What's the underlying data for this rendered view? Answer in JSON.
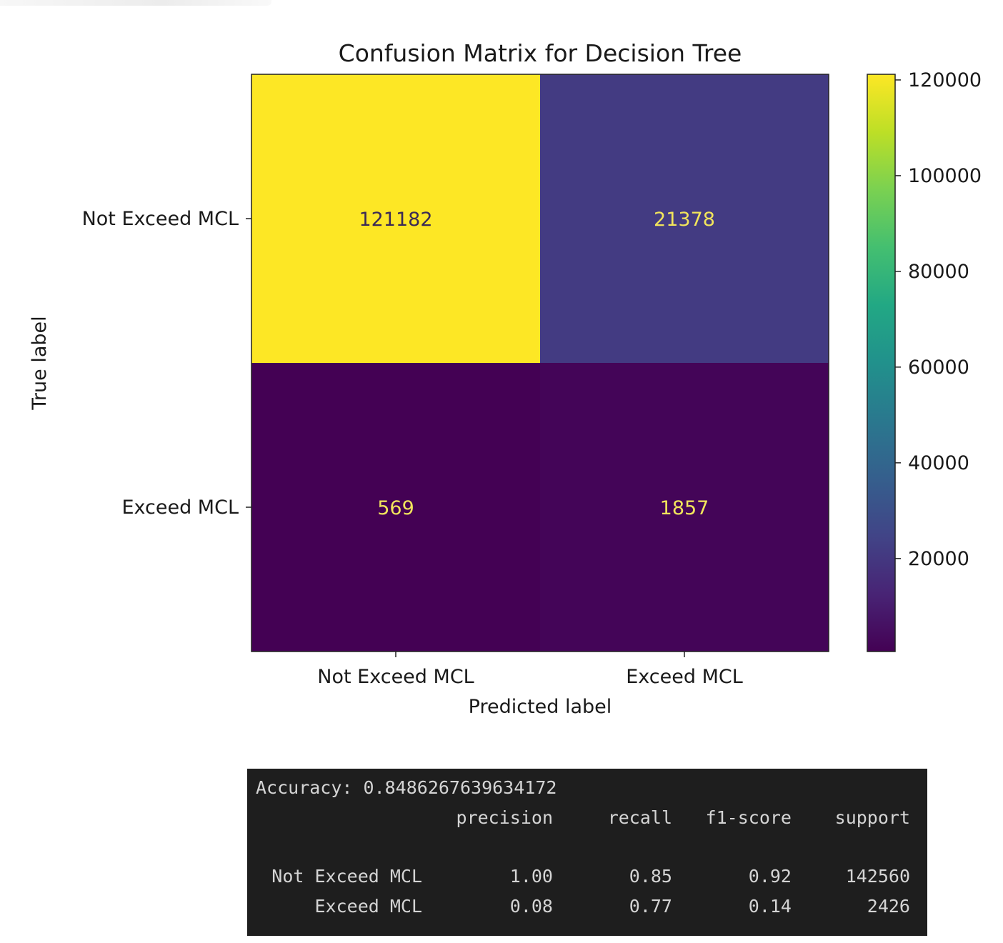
{
  "chart_data": {
    "type": "heatmap",
    "title": "Confusion Matrix for Decision Tree",
    "xlabel": "Predicted label",
    "ylabel": "True label",
    "x_categories": [
      "Not Exceed MCL",
      "Exceed MCL"
    ],
    "y_categories": [
      "Not Exceed MCL",
      "Exceed MCL"
    ],
    "matrix": [
      [
        121182,
        21378
      ],
      [
        569,
        1857
      ]
    ],
    "colormap": "viridis",
    "colorbar": {
      "min": 569,
      "max": 121182,
      "ticks": [
        20000,
        40000,
        60000,
        80000,
        100000,
        120000
      ],
      "tick_labels": [
        "20000",
        "40000",
        "60000",
        "80000",
        "100000",
        "120000"
      ]
    }
  },
  "report": {
    "accuracy_line": "Accuracy: 0.8486267639634172",
    "headers": [
      "precision",
      "recall",
      "f1-score",
      "support"
    ],
    "rows": [
      {
        "label": "Not Exceed MCL",
        "precision": "1.00",
        "recall": "0.85",
        "f1": "0.92",
        "support": "142560"
      },
      {
        "label": "Exceed MCL",
        "precision": "0.08",
        "recall": "0.77",
        "f1": "0.14",
        "support": "2426"
      }
    ]
  },
  "colors": {
    "terminal_bg": "#1e1e1e",
    "terminal_text": "#d4d4d4"
  }
}
